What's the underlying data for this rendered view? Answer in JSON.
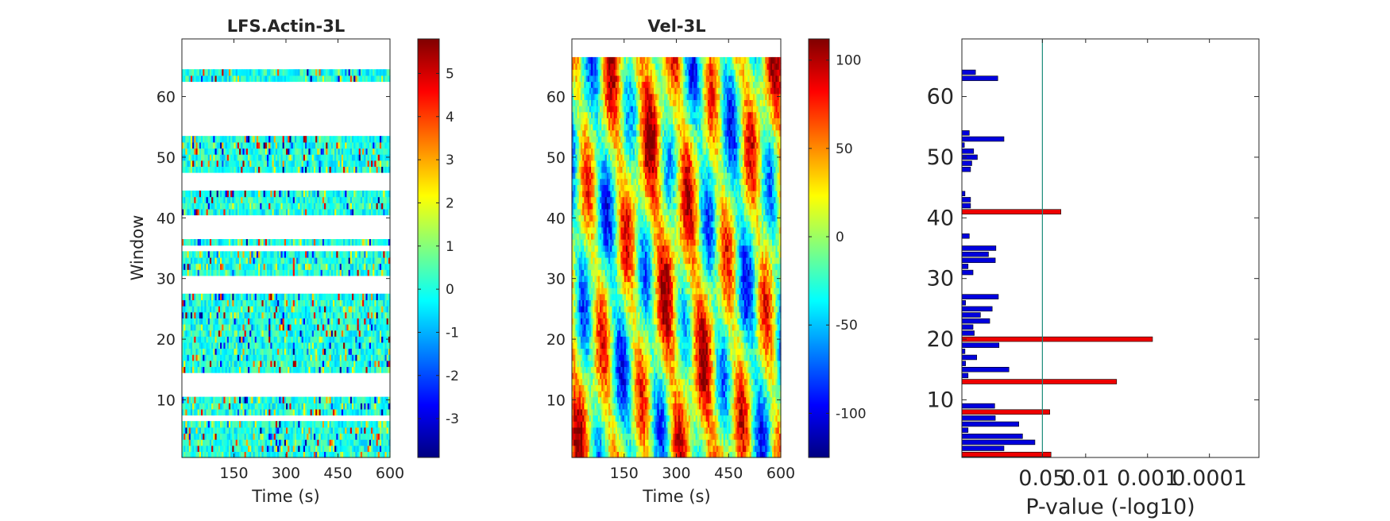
{
  "chart_data": [
    {
      "type": "heatmap",
      "title": "LFS.Actin-3L",
      "xlabel": "Time (s)",
      "ylabel": "Window",
      "xlim": [
        0,
        600
      ],
      "ylim": [
        0.5,
        69.5
      ],
      "xticks": [
        "150",
        "300",
        "450",
        "600"
      ],
      "yticks": [
        "10",
        "20",
        "30",
        "40",
        "50",
        "60"
      ],
      "n_time_bins": 120,
      "window_count": 66,
      "empty_windows": [
        7,
        11,
        12,
        13,
        14,
        28,
        29,
        30,
        35,
        37,
        38,
        39,
        40,
        45,
        46,
        47,
        54,
        55,
        56,
        57,
        58,
        59,
        60,
        61,
        62,
        65,
        66
      ],
      "colormap": "jet",
      "clim": [
        -3.9,
        5.8
      ],
      "colorbar_ticks": [
        "-3",
        "-2",
        "-1",
        "0",
        "1",
        "2",
        "3",
        "4",
        "5"
      ]
    },
    {
      "type": "heatmap",
      "title": "Vel-3L",
      "xlabel": "Time (s)",
      "ylabel": "",
      "xlim": [
        0,
        600
      ],
      "ylim": [
        0.5,
        69.5
      ],
      "xticks": [
        "150",
        "300",
        "450",
        "600"
      ],
      "yticks": [
        "10",
        "20",
        "30",
        "40",
        "50",
        "60"
      ],
      "n_time_bins": 120,
      "window_count": 66,
      "colormap": "jet",
      "clim": [
        -125,
        112
      ],
      "colorbar_ticks": [
        "-100",
        "-50",
        "0",
        "50",
        "100"
      ]
    },
    {
      "type": "bar",
      "orientation": "horizontal",
      "xlabel": "P-value (-log10)",
      "ylabel": "",
      "xlim": [
        0,
        4.8
      ],
      "ylim": [
        0.5,
        69.5
      ],
      "xticks": [
        "0.05",
        "0.01",
        "0.001",
        "0.0001"
      ],
      "yticks": [
        "10",
        "20",
        "30",
        "40",
        "50",
        "60"
      ],
      "threshold": {
        "value": 1.301,
        "label": "0.05",
        "color": "#1a8a7a"
      },
      "colors": {
        "significant": "#ee0000",
        "not_significant": "#0000dd"
      },
      "bars": [
        {
          "window": 1,
          "value": 1.44,
          "significant": true
        },
        {
          "window": 2,
          "value": 0.68,
          "significant": false
        },
        {
          "window": 3,
          "value": 1.18,
          "significant": false
        },
        {
          "window": 4,
          "value": 0.98,
          "significant": false
        },
        {
          "window": 5,
          "value": 0.1,
          "significant": false
        },
        {
          "window": 6,
          "value": 0.92,
          "significant": false
        },
        {
          "window": 7,
          "value": 0.54,
          "significant": false
        },
        {
          "window": 8,
          "value": 1.42,
          "significant": true
        },
        {
          "window": 9,
          "value": 0.53,
          "significant": false
        },
        {
          "window": 10,
          "value": 0.0,
          "significant": false
        },
        {
          "window": 11,
          "value": 0.0,
          "significant": false
        },
        {
          "window": 12,
          "value": 0.0,
          "significant": false
        },
        {
          "window": 13,
          "value": 2.5,
          "significant": true
        },
        {
          "window": 14,
          "value": 0.1,
          "significant": false
        },
        {
          "window": 15,
          "value": 0.76,
          "significant": false
        },
        {
          "window": 16,
          "value": 0.06,
          "significant": false
        },
        {
          "window": 17,
          "value": 0.24,
          "significant": false
        },
        {
          "window": 18,
          "value": 0.05,
          "significant": false
        },
        {
          "window": 19,
          "value": 0.6,
          "significant": false
        },
        {
          "window": 20,
          "value": 3.08,
          "significant": true
        },
        {
          "window": 21,
          "value": 0.2,
          "significant": false
        },
        {
          "window": 22,
          "value": 0.18,
          "significant": false
        },
        {
          "window": 23,
          "value": 0.45,
          "significant": false
        },
        {
          "window": 24,
          "value": 0.3,
          "significant": false
        },
        {
          "window": 25,
          "value": 0.49,
          "significant": false
        },
        {
          "window": 26,
          "value": 0.06,
          "significant": false
        },
        {
          "window": 27,
          "value": 0.59,
          "significant": false
        },
        {
          "window": 28,
          "value": 0.0,
          "significant": false
        },
        {
          "window": 29,
          "value": 0.0,
          "significant": false
        },
        {
          "window": 30,
          "value": 0.0,
          "significant": false
        },
        {
          "window": 31,
          "value": 0.18,
          "significant": false
        },
        {
          "window": 32,
          "value": 0.1,
          "significant": false
        },
        {
          "window": 33,
          "value": 0.54,
          "significant": false
        },
        {
          "window": 34,
          "value": 0.43,
          "significant": false
        },
        {
          "window": 35,
          "value": 0.55,
          "significant": false
        },
        {
          "window": 36,
          "value": 0.0,
          "significant": false
        },
        {
          "window": 37,
          "value": 0.12,
          "significant": false
        },
        {
          "window": 38,
          "value": 0.0,
          "significant": false
        },
        {
          "window": 39,
          "value": 0.0,
          "significant": false
        },
        {
          "window": 40,
          "value": 0.0,
          "significant": false
        },
        {
          "window": 41,
          "value": 1.6,
          "significant": true
        },
        {
          "window": 42,
          "value": 0.14,
          "significant": false
        },
        {
          "window": 43,
          "value": 0.14,
          "significant": false
        },
        {
          "window": 44,
          "value": 0.05,
          "significant": false
        },
        {
          "window": 45,
          "value": 0.0,
          "significant": false
        },
        {
          "window": 46,
          "value": 0.0,
          "significant": false
        },
        {
          "window": 47,
          "value": 0.0,
          "significant": false
        },
        {
          "window": 48,
          "value": 0.14,
          "significant": false
        },
        {
          "window": 49,
          "value": 0.16,
          "significant": false
        },
        {
          "window": 50,
          "value": 0.25,
          "significant": false
        },
        {
          "window": 51,
          "value": 0.19,
          "significant": false
        },
        {
          "window": 52,
          "value": 0.04,
          "significant": false
        },
        {
          "window": 53,
          "value": 0.68,
          "significant": false
        },
        {
          "window": 54,
          "value": 0.12,
          "significant": false
        },
        {
          "window": 55,
          "value": 0.0,
          "significant": false
        },
        {
          "window": 56,
          "value": 0.0,
          "significant": false
        },
        {
          "window": 57,
          "value": 0.0,
          "significant": false
        },
        {
          "window": 58,
          "value": 0.0,
          "significant": false
        },
        {
          "window": 59,
          "value": 0.0,
          "significant": false
        },
        {
          "window": 60,
          "value": 0.0,
          "significant": false
        },
        {
          "window": 61,
          "value": 0.0,
          "significant": false
        },
        {
          "window": 62,
          "value": 0.0,
          "significant": false
        },
        {
          "window": 63,
          "value": 0.58,
          "significant": false
        },
        {
          "window": 64,
          "value": 0.22,
          "significant": false
        }
      ]
    }
  ]
}
